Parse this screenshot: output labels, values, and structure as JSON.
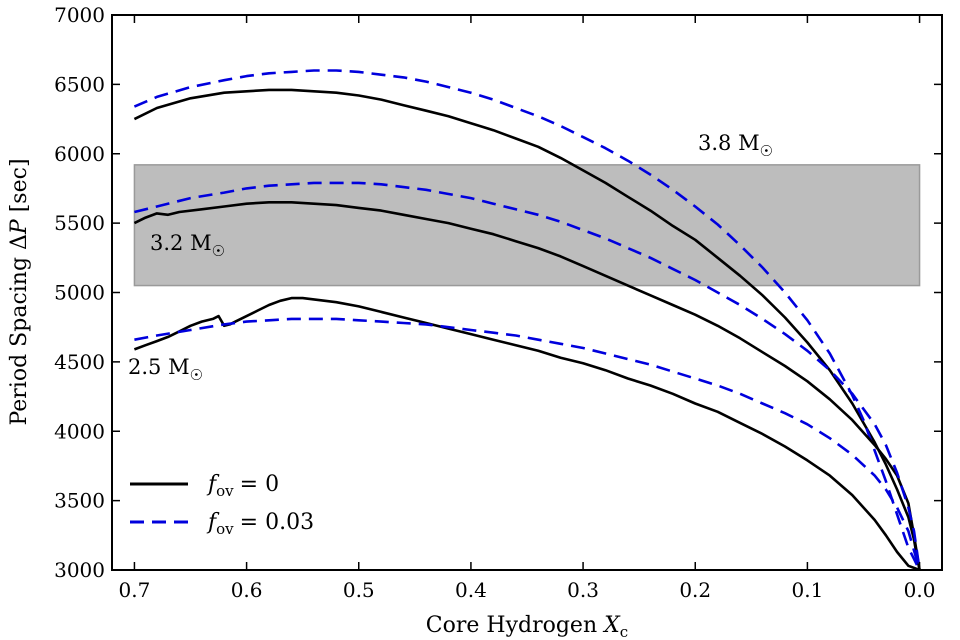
{
  "chart_data": {
    "type": "line",
    "title": "",
    "xlabel": "Core Hydrogen Xc",
    "xlabel_parts": {
      "main": "Core Hydrogen ",
      "var": "X",
      "sub": "c"
    },
    "ylabel": "Period Spacing ΔP [sec]",
    "ylabel_parts": {
      "main": "Period Spacing Δ",
      "var": "P",
      "unit": " [sec]"
    },
    "xlim": [
      0.72,
      -0.02
    ],
    "ylim": [
      3000,
      7000
    ],
    "x_ticks": [
      0.7,
      0.6,
      0.5,
      0.4,
      0.3,
      0.2,
      0.1,
      0.0
    ],
    "x_tick_labels": [
      "0.7",
      "0.6",
      "0.5",
      "0.4",
      "0.3",
      "0.2",
      "0.1",
      "0.0"
    ],
    "y_ticks": [
      3000,
      3500,
      4000,
      4500,
      5000,
      5500,
      6000,
      6500,
      7000
    ],
    "y_tick_labels": [
      "3000",
      "3500",
      "4000",
      "4500",
      "5000",
      "5500",
      "6000",
      "6500",
      "7000"
    ],
    "grid": false,
    "shaded_band": {
      "x_range": [
        0.7,
        0.0
      ],
      "y_range": [
        5050,
        5920
      ],
      "color": "#bdbdbd"
    },
    "colors": {
      "fov0": "#000000",
      "fov003": "#0000dd",
      "band": "#bdbdbd",
      "band_edge": "#9a9a9a"
    },
    "legend": {
      "position": "lower-left",
      "entries": [
        {
          "symbol": "f",
          "sub": "ov",
          "value": "= 0",
          "style": "solid",
          "color": "#000000"
        },
        {
          "symbol": "f",
          "sub": "ov",
          "value": "= 0.03",
          "style": "dashed",
          "color": "#0000dd"
        }
      ]
    },
    "annotations": [
      {
        "text": "3.8 M",
        "symbol": "☉",
        "x": 0.2,
        "y": 6050
      },
      {
        "text": "3.2 M",
        "symbol": "☉",
        "x": 0.68,
        "y": 5330
      },
      {
        "text": "2.5 M",
        "symbol": "☉",
        "x": 0.7,
        "y": 4460
      }
    ],
    "series": [
      {
        "name": "3.8 Msun, fov=0",
        "style": "solid",
        "x": [
          0.7,
          0.68,
          0.65,
          0.62,
          0.6,
          0.58,
          0.56,
          0.54,
          0.52,
          0.5,
          0.48,
          0.46,
          0.44,
          0.42,
          0.4,
          0.38,
          0.36,
          0.34,
          0.32,
          0.3,
          0.28,
          0.26,
          0.24,
          0.22,
          0.2,
          0.18,
          0.16,
          0.14,
          0.12,
          0.1,
          0.08,
          0.06,
          0.04,
          0.03,
          0.02,
          0.01,
          0.005,
          0.002,
          0.0
        ],
        "y": [
          6250,
          6330,
          6400,
          6440,
          6450,
          6460,
          6460,
          6450,
          6440,
          6420,
          6390,
          6350,
          6310,
          6270,
          6220,
          6170,
          6110,
          6050,
          5970,
          5880,
          5790,
          5690,
          5590,
          5480,
          5380,
          5250,
          5120,
          4980,
          4820,
          4640,
          4440,
          4200,
          3920,
          3760,
          3580,
          3380,
          3220,
          3080,
          3000
        ]
      },
      {
        "name": "3.8 Msun, fov=0.03",
        "style": "dashed",
        "x": [
          0.7,
          0.68,
          0.65,
          0.62,
          0.6,
          0.58,
          0.56,
          0.54,
          0.52,
          0.5,
          0.48,
          0.46,
          0.44,
          0.42,
          0.4,
          0.38,
          0.36,
          0.34,
          0.32,
          0.3,
          0.28,
          0.26,
          0.24,
          0.22,
          0.2,
          0.18,
          0.16,
          0.14,
          0.12,
          0.1,
          0.08,
          0.06,
          0.05,
          0.04,
          0.03,
          0.02,
          0.01,
          0.005,
          0.002,
          0.0
        ],
        "y": [
          6340,
          6410,
          6480,
          6530,
          6560,
          6580,
          6590,
          6600,
          6600,
          6590,
          6570,
          6550,
          6520,
          6480,
          6440,
          6390,
          6330,
          6270,
          6200,
          6120,
          6040,
          5950,
          5850,
          5740,
          5620,
          5490,
          5340,
          5180,
          5000,
          4800,
          4560,
          4260,
          4080,
          3860,
          3640,
          3400,
          3160,
          3080,
          3030,
          3000
        ]
      },
      {
        "name": "3.2 Msun, fov=0",
        "style": "solid",
        "x": [
          0.7,
          0.69,
          0.68,
          0.67,
          0.66,
          0.64,
          0.62,
          0.6,
          0.58,
          0.56,
          0.54,
          0.52,
          0.5,
          0.48,
          0.46,
          0.44,
          0.42,
          0.4,
          0.38,
          0.36,
          0.34,
          0.32,
          0.3,
          0.28,
          0.26,
          0.24,
          0.22,
          0.2,
          0.18,
          0.16,
          0.14,
          0.12,
          0.1,
          0.08,
          0.06,
          0.04,
          0.03,
          0.02,
          0.01,
          0.005,
          0.0
        ],
        "y": [
          5500,
          5540,
          5570,
          5560,
          5580,
          5600,
          5620,
          5640,
          5650,
          5650,
          5640,
          5630,
          5610,
          5590,
          5560,
          5530,
          5500,
          5460,
          5420,
          5370,
          5320,
          5260,
          5190,
          5120,
          5050,
          4980,
          4910,
          4840,
          4760,
          4670,
          4570,
          4470,
          4360,
          4230,
          4080,
          3900,
          3800,
          3680,
          3480,
          3250,
          3000
        ]
      },
      {
        "name": "3.2 Msun, fov=0.03",
        "style": "dashed",
        "x": [
          0.7,
          0.68,
          0.65,
          0.62,
          0.6,
          0.58,
          0.56,
          0.54,
          0.52,
          0.5,
          0.48,
          0.46,
          0.44,
          0.42,
          0.4,
          0.38,
          0.36,
          0.34,
          0.32,
          0.3,
          0.28,
          0.26,
          0.24,
          0.22,
          0.2,
          0.18,
          0.16,
          0.14,
          0.12,
          0.1,
          0.08,
          0.06,
          0.04,
          0.03,
          0.02,
          0.01,
          0.005,
          0.0
        ],
        "y": [
          5580,
          5620,
          5680,
          5720,
          5750,
          5770,
          5780,
          5790,
          5790,
          5790,
          5780,
          5760,
          5740,
          5710,
          5680,
          5640,
          5600,
          5560,
          5510,
          5450,
          5390,
          5320,
          5250,
          5170,
          5090,
          5000,
          4910,
          4810,
          4700,
          4580,
          4440,
          4270,
          4050,
          3900,
          3700,
          3450,
          3280,
          3000
        ]
      },
      {
        "name": "2.5 Msun, fov=0",
        "style": "solid",
        "x": [
          0.7,
          0.69,
          0.68,
          0.67,
          0.66,
          0.65,
          0.64,
          0.63,
          0.625,
          0.62,
          0.615,
          0.61,
          0.6,
          0.59,
          0.58,
          0.57,
          0.56,
          0.55,
          0.54,
          0.52,
          0.5,
          0.48,
          0.46,
          0.44,
          0.42,
          0.4,
          0.38,
          0.36,
          0.34,
          0.32,
          0.3,
          0.28,
          0.26,
          0.24,
          0.22,
          0.2,
          0.18,
          0.16,
          0.14,
          0.12,
          0.1,
          0.08,
          0.06,
          0.04,
          0.03,
          0.02,
          0.01,
          0.0
        ],
        "y": [
          4590,
          4620,
          4650,
          4680,
          4720,
          4760,
          4790,
          4810,
          4830,
          4760,
          4770,
          4790,
          4830,
          4870,
          4910,
          4940,
          4960,
          4960,
          4950,
          4930,
          4900,
          4860,
          4820,
          4780,
          4740,
          4700,
          4660,
          4620,
          4580,
          4530,
          4490,
          4440,
          4380,
          4330,
          4270,
          4200,
          4140,
          4060,
          3980,
          3890,
          3790,
          3680,
          3540,
          3360,
          3250,
          3130,
          3030,
          3000
        ]
      },
      {
        "name": "2.5 Msun, fov=0.03",
        "style": "dashed",
        "x": [
          0.7,
          0.68,
          0.65,
          0.62,
          0.6,
          0.58,
          0.56,
          0.54,
          0.52,
          0.5,
          0.48,
          0.46,
          0.44,
          0.42,
          0.4,
          0.38,
          0.36,
          0.34,
          0.32,
          0.3,
          0.28,
          0.26,
          0.24,
          0.22,
          0.2,
          0.18,
          0.16,
          0.14,
          0.12,
          0.1,
          0.08,
          0.06,
          0.04,
          0.03,
          0.02,
          0.01,
          0.0
        ],
        "y": [
          4660,
          4690,
          4730,
          4770,
          4790,
          4800,
          4810,
          4810,
          4810,
          4800,
          4790,
          4780,
          4770,
          4750,
          4730,
          4710,
          4690,
          4660,
          4630,
          4600,
          4560,
          4520,
          4480,
          4430,
          4380,
          4330,
          4270,
          4200,
          4130,
          4050,
          3950,
          3830,
          3680,
          3580,
          3450,
          3280,
          3000
        ]
      }
    ]
  }
}
